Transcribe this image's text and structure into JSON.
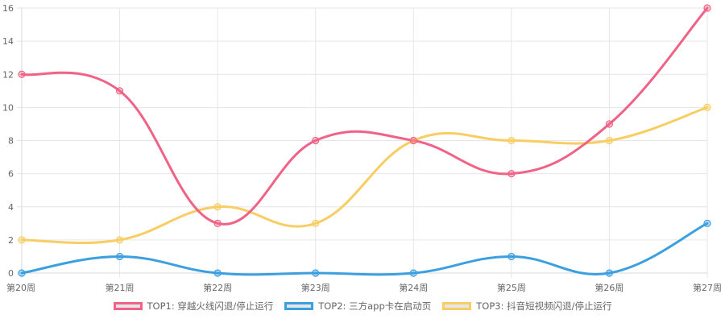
{
  "chart_data": {
    "type": "line",
    "categories": [
      "第20周",
      "第21周",
      "第22周",
      "第23周",
      "第24周",
      "第25周",
      "第26周",
      "第27周"
    ],
    "ylim": [
      0,
      16
    ],
    "yticks": [
      "0",
      "2",
      "4",
      "6",
      "8",
      "10",
      "12",
      "14",
      "16"
    ],
    "grid": true,
    "legend_position": "bottom",
    "series": [
      {
        "name": "TOP1: 穿越火线闪退/停止运行",
        "color": "#f06386",
        "values": [
          12,
          11,
          3,
          8,
          8,
          6,
          9,
          16
        ]
      },
      {
        "name": "TOP2: 三方app卡在启动页",
        "color": "#3b9fe0",
        "values": [
          0,
          1,
          0,
          0,
          0,
          1,
          0,
          3
        ]
      },
      {
        "name": "TOP3: 抖音短视频闪退/停止运行",
        "color": "#f8cd63",
        "values": [
          2,
          2,
          4,
          3,
          8,
          8,
          8,
          10
        ]
      }
    ]
  }
}
